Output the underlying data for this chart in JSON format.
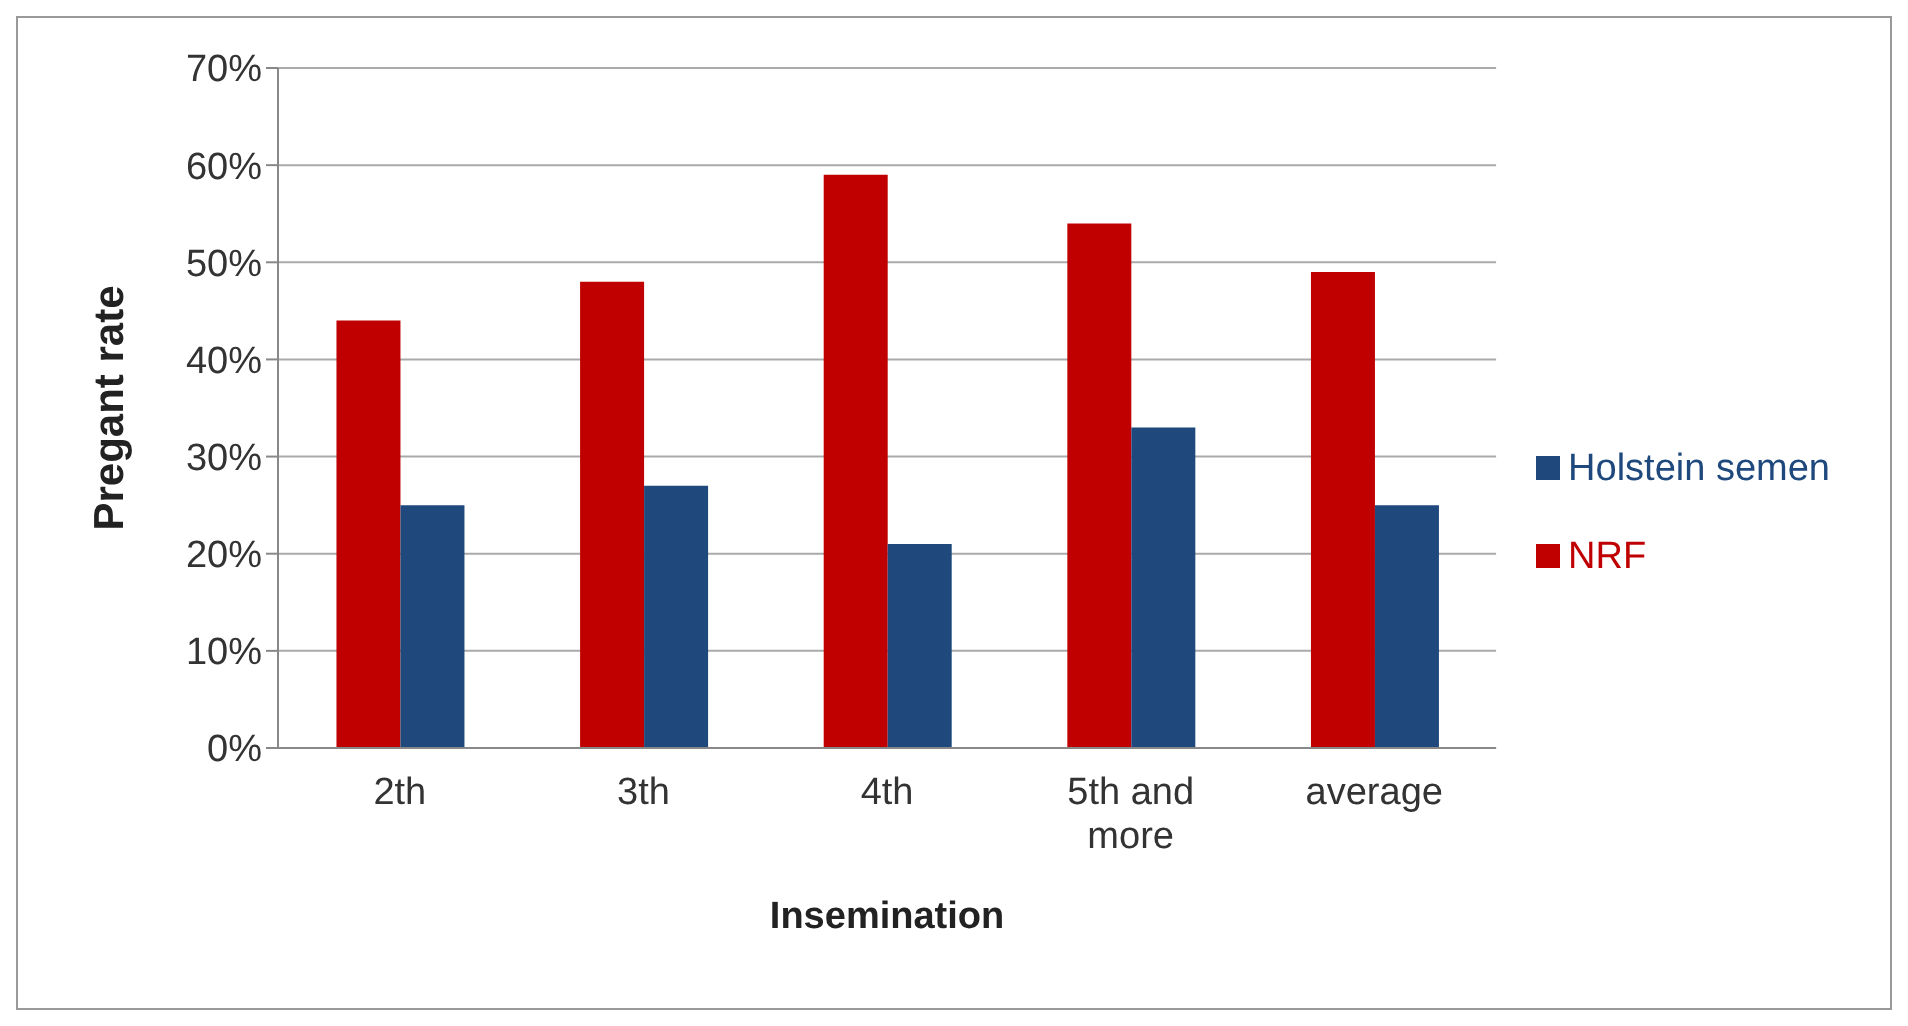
{
  "chart_data": {
    "type": "bar",
    "xlabel": "Insemination",
    "ylabel": "Pregant rate",
    "categories": [
      "2th",
      "3th",
      "4th",
      "5th and more",
      "average"
    ],
    "series": [
      {
        "name": "NRF",
        "color": "#c00000",
        "values": [
          44,
          48,
          59,
          54,
          49
        ]
      },
      {
        "name": "Holstein semen",
        "color": "#1f497d",
        "values": [
          25,
          27,
          21,
          33,
          25
        ]
      }
    ],
    "ylim": [
      0,
      70
    ],
    "yticks": [
      {
        "value": 0,
        "label": "0%"
      },
      {
        "value": 10,
        "label": "10%"
      },
      {
        "value": 20,
        "label": "20%"
      },
      {
        "value": 30,
        "label": "30%"
      },
      {
        "value": 40,
        "label": "40%"
      },
      {
        "value": 50,
        "label": "50%"
      },
      {
        "value": 60,
        "label": "60%"
      },
      {
        "value": 70,
        "label": "70%"
      }
    ],
    "grid": "y",
    "legend": "right"
  }
}
